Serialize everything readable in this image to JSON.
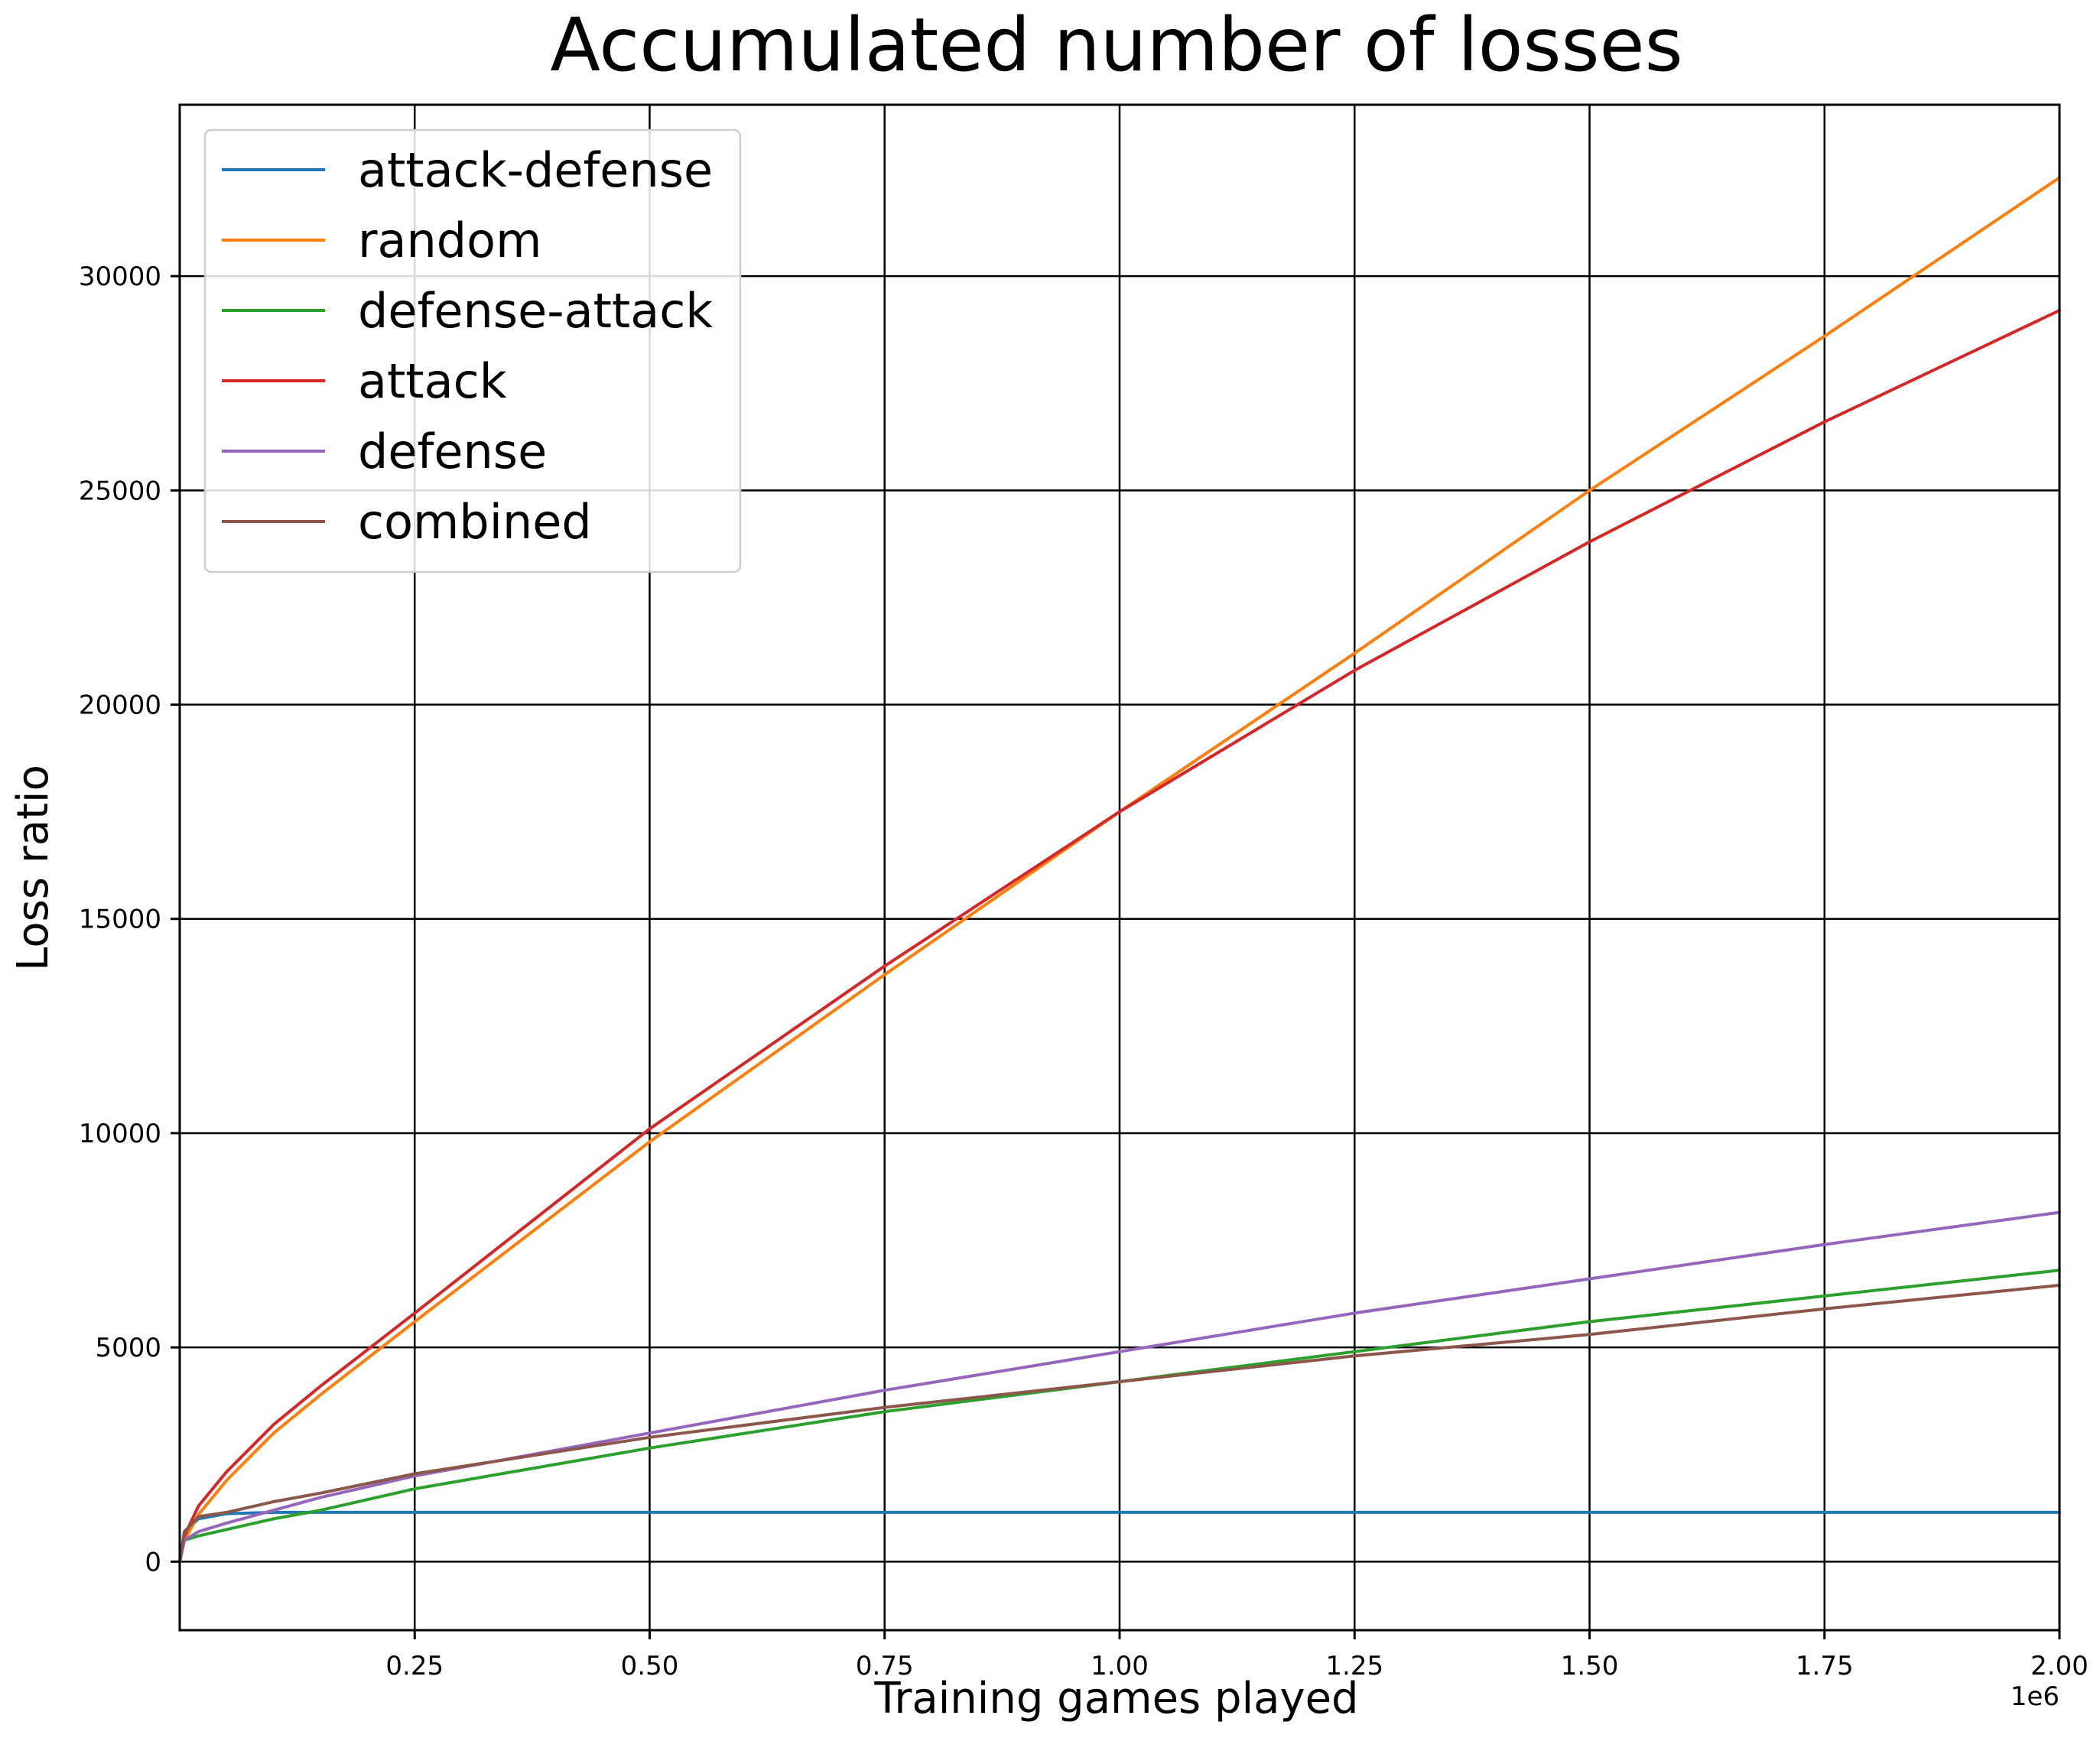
{
  "chart_data": {
    "type": "line",
    "title": "Accumulated number of losses",
    "xlabel": "Training games played",
    "ylabel": "Loss ratio",
    "x_offset_label": "1e6",
    "xlim": [
      0,
      2.0
    ],
    "ylim": [
      -1600,
      34000
    ],
    "x_ticks": [
      0.25,
      0.5,
      0.75,
      1.0,
      1.25,
      1.5,
      1.75,
      2.0
    ],
    "x_tick_labels": [
      "0.25",
      "0.50",
      "0.75",
      "1.00",
      "1.25",
      "1.50",
      "1.75",
      "2.00"
    ],
    "y_ticks": [
      0,
      5000,
      10000,
      15000,
      20000,
      25000,
      30000
    ],
    "y_tick_labels": [
      "0",
      "5000",
      "10000",
      "15000",
      "20000",
      "25000",
      "30000"
    ],
    "grid": true,
    "legend_position": "top-left",
    "x": [
      0,
      0.005,
      0.02,
      0.05,
      0.1,
      0.15,
      0.25,
      0.5,
      0.75,
      1.0,
      1.25,
      1.5,
      1.75,
      2.0
    ],
    "series": [
      {
        "name": "attack-defense",
        "color": "#1f77b4",
        "values": [
          0,
          700,
          1000,
          1120,
          1150,
          1150,
          1150,
          1150,
          1150,
          1150,
          1150,
          1150,
          1150,
          1150
        ]
      },
      {
        "name": "random",
        "color": "#ff7f0e",
        "values": [
          0,
          500,
          1100,
          1900,
          3000,
          3900,
          5600,
          9800,
          13700,
          17500,
          21200,
          25000,
          28600,
          32300
        ]
      },
      {
        "name": "defense-attack",
        "color": "#2ca02c",
        "values": [
          0,
          500,
          600,
          750,
          1000,
          1200,
          1700,
          2650,
          3500,
          4200,
          4900,
          5600,
          6200,
          6800
        ]
      },
      {
        "name": "attack",
        "color": "#d62728",
        "values": [
          0,
          600,
          1300,
          2100,
          3200,
          4100,
          5800,
          10100,
          13900,
          17500,
          20800,
          23800,
          26600,
          29200
        ]
      },
      {
        "name": "defense",
        "color": "#9467bd",
        "values": [
          0,
          500,
          700,
          900,
          1200,
          1500,
          2000,
          3000,
          4000,
          4900,
          5800,
          6600,
          7400,
          8150
        ]
      },
      {
        "name": "combined",
        "color": "#8c564b",
        "values": [
          0,
          700,
          1050,
          1150,
          1400,
          1600,
          2050,
          2900,
          3600,
          4200,
          4800,
          5300,
          5900,
          6450
        ]
      }
    ]
  }
}
